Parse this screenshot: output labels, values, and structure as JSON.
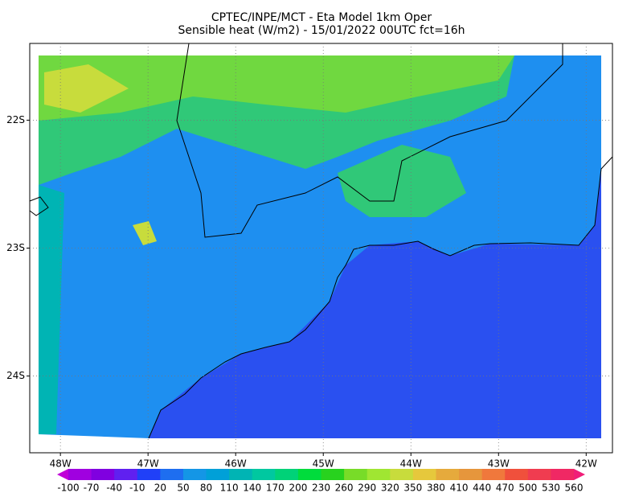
{
  "title": "CPTEC/INPE/MCT -  Eta Model 1km Oper",
  "subtitle": "Sensible heat (W/m2) - 15/01/2022 00UTC fct=16h",
  "map": {
    "xlim": [
      -48.35,
      -41.7
    ],
    "ylim": [
      -24.6,
      -21.4
    ],
    "xticks": [
      {
        "value": -48,
        "label": "48W"
      },
      {
        "value": -47,
        "label": "47W"
      },
      {
        "value": -46,
        "label": "46W"
      },
      {
        "value": -45,
        "label": "45W"
      },
      {
        "value": -44,
        "label": "44W"
      },
      {
        "value": -43,
        "label": "43W"
      },
      {
        "value": -42,
        "label": "42W"
      }
    ],
    "yticks": [
      {
        "value": -22,
        "label": "22S"
      },
      {
        "value": -23,
        "label": "23S"
      },
      {
        "value": -24,
        "label": "24S"
      }
    ],
    "grid": true
  },
  "colorbar": {
    "labels": [
      -100,
      -70,
      -40,
      -10,
      20,
      50,
      80,
      110,
      140,
      170,
      200,
      230,
      260,
      290,
      320,
      350,
      380,
      410,
      440,
      470,
      500,
      530,
      560
    ],
    "colors": [
      "#c000d8",
      "#a000e0",
      "#8000e0",
      "#6020f0",
      "#2040f8",
      "#1e6ef0",
      "#1496e6",
      "#00a0d8",
      "#00b4b4",
      "#00c8a0",
      "#00d278",
      "#00dc3c",
      "#28d21e",
      "#78dc28",
      "#a0e632",
      "#c8dc3c",
      "#e6c83c",
      "#e6aa3c",
      "#e6963c",
      "#f0783c",
      "#f0503c",
      "#f03c50",
      "#f02864",
      "#f01e78"
    ]
  }
}
